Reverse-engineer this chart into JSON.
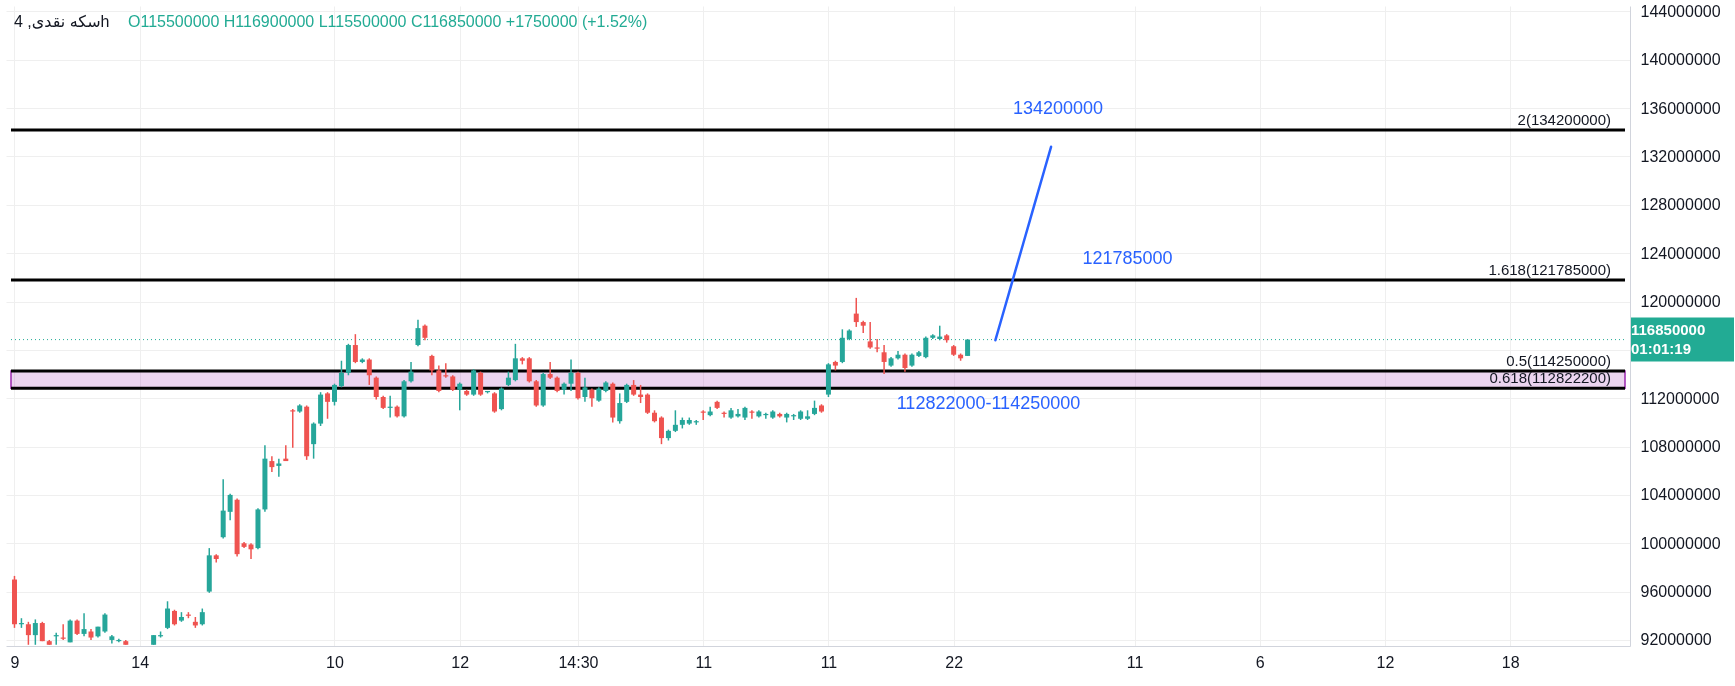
{
  "chart_data": {
    "type": "candlestick",
    "title": "سکه نقدی, 4h",
    "subtitle": "O115500000  H116900000  L115500000  C116850000  +1750000 (+1.52%)",
    "categories": [
      "9",
      null,
      null,
      null,
      null,
      null,
      null,
      null,
      null,
      null,
      null,
      null,
      null,
      null,
      null,
      null,
      null,
      null,
      "14",
      null,
      null,
      null,
      null,
      null,
      null,
      null,
      null,
      null,
      null,
      null,
      null,
      null,
      null,
      null,
      null,
      null,
      null,
      null,
      null,
      null,
      null,
      null,
      null,
      null,
      null,
      null,
      "10",
      null,
      null,
      null,
      null,
      null,
      null,
      null,
      null,
      null,
      null,
      null,
      null,
      null,
      null,
      null,
      null,
      null,
      "12",
      null,
      null,
      null,
      null,
      null,
      null,
      null,
      null,
      null,
      null,
      null,
      null,
      null,
      null,
      null,
      null,
      "14:30",
      null,
      null,
      null,
      null,
      null,
      null,
      null,
      null,
      null,
      null,
      null,
      null,
      null,
      null,
      null,
      null,
      null,
      "11",
      null,
      null,
      null,
      null,
      null,
      null,
      null,
      null,
      null,
      null,
      null,
      null,
      null,
      null,
      null,
      null,
      null,
      "11",
      null,
      null,
      null,
      null,
      null,
      null,
      null,
      null,
      null,
      null,
      null,
      null,
      null,
      null,
      null,
      null,
      null,
      "22",
      null,
      null,
      null,
      null,
      null,
      null,
      null,
      null,
      null,
      null,
      null,
      null,
      null,
      null,
      null,
      null,
      null,
      null,
      null,
      null,
      null,
      null,
      null,
      null,
      null,
      "11",
      null,
      null,
      null,
      null,
      null,
      null,
      null,
      null,
      null,
      null,
      null,
      null,
      null,
      null,
      null,
      null,
      null,
      "6",
      null,
      null,
      null,
      null,
      null,
      null,
      null,
      null,
      null,
      null,
      null,
      null,
      null,
      null,
      null,
      null,
      null,
      "12",
      null,
      null,
      null,
      null,
      null,
      null,
      null,
      null,
      null,
      null,
      null,
      null,
      null,
      null,
      null,
      null,
      null,
      "18",
      null,
      null,
      null,
      null,
      null,
      null,
      null,
      null,
      null,
      null,
      null,
      null,
      null,
      null,
      null,
      null
    ],
    "ohlc": [
      [
        97000000,
        97300000,
        93000000,
        93300000
      ],
      [
        93300000,
        93800000,
        93000000,
        93400000
      ],
      [
        93300000,
        93500000,
        91600000,
        92400000
      ],
      [
        92400000,
        93700000,
        91600000,
        93400000
      ],
      [
        93400000,
        93500000,
        91900000,
        91900000
      ],
      [
        91900000,
        92000000,
        91600000,
        91600000
      ],
      [
        92300000,
        92600000,
        91600000,
        92400000
      ],
      [
        92200000,
        93300000,
        92000000,
        92100000
      ],
      [
        91800000,
        93700000,
        91800000,
        93600000
      ],
      [
        93600000,
        93700000,
        92400000,
        92500000
      ],
      [
        92500000,
        94200000,
        92300000,
        92900000
      ],
      [
        92700000,
        92900000,
        92000000,
        92200000
      ],
      [
        92300000,
        93100000,
        92200000,
        93100000
      ],
      [
        92700000,
        94200000,
        92600000,
        94100000
      ],
      [
        92000000,
        92400000,
        91700000,
        92300000
      ],
      [
        91900000,
        92100000,
        91800000,
        92000000
      ],
      [
        91900000,
        92000000,
        91600000,
        91600000
      ],
      null,
      null,
      null,
      [
        91600000,
        92400000,
        91600000,
        92400000
      ],
      [
        92300000,
        92700000,
        92200000,
        92400000
      ],
      [
        93000000,
        95200000,
        92900000,
        94600000
      ],
      [
        94400000,
        94500000,
        93200000,
        93300000
      ],
      [
        93600000,
        94300000,
        93500000,
        93900000
      ],
      [
        94100000,
        94300000,
        93800000,
        94000000
      ],
      [
        93500000,
        93900000,
        93000000,
        93200000
      ],
      [
        93300000,
        94600000,
        93200000,
        94300000
      ],
      [
        96000000,
        99600000,
        95900000,
        99000000
      ],
      [
        99000000,
        99100000,
        98400000,
        98700000
      ],
      [
        100500000,
        105300000,
        100400000,
        102700000
      ],
      [
        102600000,
        104100000,
        101900000,
        104000000
      ],
      [
        103600000,
        103700000,
        98900000,
        99100000
      ],
      [
        100000000,
        100100000,
        99600000,
        99700000
      ],
      [
        99900000,
        100000000,
        98700000,
        99500000
      ],
      [
        99600000,
        102900000,
        99500000,
        102800000
      ],
      [
        102800000,
        108100000,
        102600000,
        107000000
      ],
      [
        106800000,
        107200000,
        105900000,
        106300000
      ],
      [
        106400000,
        107000000,
        105500000,
        106600000
      ],
      [
        107000000,
        108100000,
        106800000,
        106800000
      ],
      [
        111000000,
        111100000,
        107900000,
        110900000
      ],
      [
        110900000,
        111500000,
        110800000,
        111400000
      ],
      [
        111300000,
        111400000,
        106900000,
        107200000
      ],
      [
        108200000,
        110000000,
        107000000,
        109900000
      ],
      [
        109900000,
        112500000,
        109700000,
        112300000
      ],
      [
        112400000,
        112500000,
        110300000,
        111700000
      ],
      [
        111700000,
        113200000,
        111400000,
        113100000
      ],
      [
        113000000,
        115100000,
        112900000,
        114100000
      ],
      [
        114100000,
        116500000,
        113900000,
        116400000
      ],
      [
        116400000,
        117300000,
        114900000,
        115000000
      ],
      [
        115000000,
        115300000,
        114900000,
        115200000
      ],
      [
        115200000,
        115300000,
        113100000,
        113900000
      ],
      [
        113700000,
        113800000,
        111900000,
        112100000
      ],
      [
        112100000,
        112200000,
        111100000,
        111200000
      ],
      [
        111200000,
        112200000,
        110400000,
        111300000
      ],
      [
        111300000,
        111400000,
        110400000,
        110500000
      ],
      [
        110500000,
        113500000,
        110400000,
        113400000
      ],
      [
        113400000,
        115000000,
        113300000,
        114200000
      ],
      [
        116400000,
        118500000,
        116300000,
        117800000
      ],
      [
        118000000,
        118100000,
        116800000,
        117000000
      ],
      [
        115500000,
        115600000,
        113900000,
        114300000
      ],
      [
        114300000,
        114700000,
        112500000,
        112600000
      ],
      [
        113900000,
        114900000,
        113700000,
        113800000
      ],
      [
        113800000,
        113900000,
        112600000,
        112700000
      ],
      [
        112700000,
        113300000,
        111000000,
        113200000
      ],
      [
        112600000,
        112700000,
        112200000,
        112300000
      ],
      [
        112300000,
        114400000,
        112200000,
        114300000
      ],
      [
        114100000,
        114200000,
        112200000,
        112300000
      ],
      [
        112500000,
        112600000,
        112400000,
        112600000
      ],
      [
        112400000,
        112500000,
        110800000,
        110900000
      ],
      [
        111100000,
        112900000,
        111000000,
        112800000
      ],
      [
        113100000,
        114200000,
        113000000,
        113700000
      ],
      [
        113500000,
        116500000,
        113400000,
        115300000
      ],
      [
        115300000,
        115400000,
        114800000,
        115100000
      ],
      [
        115300000,
        115400000,
        113300000,
        113400000
      ],
      [
        113400000,
        113500000,
        111300000,
        111400000
      ],
      [
        111400000,
        114100000,
        111300000,
        114000000
      ],
      [
        114000000,
        115000000,
        113600000,
        113700000
      ],
      [
        113700000,
        113800000,
        112500000,
        112600000
      ],
      [
        112700000,
        113300000,
        112300000,
        113200000
      ],
      [
        113200000,
        115200000,
        112600000,
        114100000
      ],
      [
        114100000,
        114200000,
        111900000,
        112000000
      ],
      [
        112100000,
        113700000,
        111700000,
        112900000
      ],
      [
        112700000,
        112800000,
        111300000,
        112000000
      ],
      [
        111800000,
        112900000,
        111700000,
        112800000
      ],
      [
        112600000,
        113400000,
        112500000,
        113300000
      ],
      [
        113200000,
        113300000,
        110000000,
        110400000
      ],
      [
        110100000,
        112400000,
        109900000,
        111600000
      ],
      [
        111700000,
        113200000,
        111600000,
        113100000
      ],
      [
        113100000,
        113500000,
        112200000,
        112300000
      ],
      [
        112300000,
        113100000,
        111600000,
        112100000
      ],
      [
        112300000,
        112400000,
        110700000,
        110800000
      ],
      [
        110800000,
        111000000,
        110000000,
        110100000
      ],
      [
        110400000,
        110500000,
        108200000,
        108700000
      ],
      [
        108700000,
        109400000,
        108500000,
        109300000
      ],
      [
        109300000,
        111000000,
        109200000,
        109800000
      ],
      [
        109800000,
        110400000,
        109500000,
        110200000
      ],
      [
        109900000,
        110400000,
        109800000,
        110200000
      ],
      [
        110000000,
        110200000,
        109800000,
        110100000
      ],
      [
        110900000,
        111000000,
        110200000,
        110800000
      ],
      [
        110600000,
        111300000,
        110500000,
        110900000
      ],
      [
        111700000,
        111800000,
        111100000,
        111200000
      ],
      [
        110800000,
        110900000,
        110400000,
        110700000
      ],
      [
        110400000,
        111200000,
        110300000,
        111000000
      ],
      [
        110500000,
        111100000,
        110400000,
        110700000
      ],
      [
        110400000,
        111300000,
        110200000,
        111200000
      ],
      [
        110900000,
        111000000,
        110300000,
        110800000
      ],
      [
        110500000,
        111000000,
        110400000,
        110900000
      ],
      [
        110600000,
        110800000,
        110300000,
        110700000
      ],
      [
        110400000,
        111000000,
        110300000,
        110900000
      ],
      [
        110700000,
        110800000,
        110400000,
        110500000
      ],
      [
        110400000,
        110800000,
        110000000,
        110700000
      ],
      [
        110500000,
        110700000,
        110200000,
        110600000
      ],
      [
        110300000,
        111000000,
        110200000,
        110900000
      ],
      [
        110300000,
        111000000,
        110200000,
        110500000
      ],
      [
        110700000,
        111800000,
        110600000,
        111200000
      ],
      [
        111400000,
        111500000,
        110800000,
        110900000
      ],
      [
        112300000,
        114900000,
        112100000,
        114800000
      ],
      [
        115000000,
        115100000,
        114300000,
        114700000
      ],
      [
        115000000,
        117700000,
        114900000,
        117000000
      ],
      [
        116900000,
        117700000,
        116800000,
        117600000
      ],
      [
        119000000,
        120300000,
        117900000,
        118300000
      ],
      [
        118300000,
        118400000,
        117400000,
        118000000
      ],
      [
        116700000,
        118300000,
        116100000,
        116200000
      ],
      [
        116200000,
        116900000,
        115800000,
        116100000
      ],
      [
        115800000,
        116400000,
        114000000,
        115000000
      ],
      [
        114700000,
        115400000,
        114600000,
        115300000
      ],
      [
        115300000,
        115900000,
        115200000,
        115600000
      ],
      [
        115600000,
        115700000,
        114200000,
        114500000
      ],
      [
        114700000,
        115700000,
        114600000,
        115600000
      ],
      [
        115500000,
        115900000,
        115400000,
        115800000
      ],
      [
        115400000,
        117100000,
        115300000,
        117000000
      ],
      [
        117000000,
        117300000,
        116900000,
        117200000
      ],
      [
        116900000,
        118000000,
        116800000,
        117100000
      ],
      [
        117200000,
        117300000,
        116600000,
        116800000
      ],
      [
        116300000,
        116400000,
        115500000,
        115600000
      ],
      [
        115600000,
        115700000,
        115100000,
        115300000
      ],
      [
        115500000,
        116900000,
        115500000,
        116850000
      ],
      null,
      null,
      null,
      null,
      null,
      null,
      null,
      null,
      null,
      null,
      null,
      null,
      null,
      null,
      null,
      null,
      null,
      null,
      null,
      null,
      null,
      null,
      null,
      null,
      null,
      null,
      null,
      null,
      null,
      null,
      null,
      null,
      null,
      null,
      null,
      null,
      null,
      null,
      null,
      null,
      null,
      null,
      null,
      null,
      null,
      null,
      null,
      null,
      null,
      null,
      null,
      null,
      null,
      null,
      null,
      null,
      null,
      null,
      null,
      null,
      null,
      null,
      null,
      null,
      null,
      null,
      null,
      null,
      null,
      null,
      null,
      null,
      null,
      null,
      null,
      null,
      null,
      null,
      null,
      null,
      null,
      null,
      null,
      null,
      null,
      null,
      null,
      null,
      null,
      null,
      null,
      null,
      null,
      null
    ],
    "colors": [
      "#ef5350",
      "#26a69a",
      "#ef5350",
      "#26a69a",
      "#ef5350",
      "#ef5350",
      "#26a69a",
      "#ef5350",
      "#26a69a",
      "#ef5350",
      "#26a69a",
      "#ef5350",
      "#26a69a",
      "#26a69a",
      "#26a69a",
      "#26a69a",
      "#ef5350",
      null,
      null,
      null,
      "#26a69a",
      "#26a69a",
      "#26a69a",
      "#ef5350",
      "#26a69a",
      "#ef5350",
      "#ef5350",
      "#26a69a",
      "#26a69a",
      "#ef5350",
      "#26a69a",
      "#26a69a",
      "#ef5350",
      "#ef5350",
      "#ef5350",
      "#26a69a",
      "#26a69a",
      "#ef5350",
      "#26a69a",
      "#ef5350",
      "#ef5350",
      "#26a69a",
      "#ef5350",
      "#26a69a",
      "#26a69a",
      "#ef5350",
      "#26a69a",
      "#26a69a",
      "#26a69a",
      "#ef5350",
      "#26a69a",
      "#ef5350",
      "#ef5350",
      "#ef5350",
      "#26a69a",
      "#ef5350",
      "#26a69a",
      "#26a69a",
      "#26a69a",
      "#ef5350",
      "#ef5350",
      "#ef5350",
      "#ef5350",
      "#ef5350",
      "#26a69a",
      "#ef5350",
      "#26a69a",
      "#ef5350",
      "#26a69a",
      "#ef5350",
      "#26a69a",
      "#26a69a",
      "#26a69a",
      "#ef5350",
      "#ef5350",
      "#ef5350",
      "#26a69a",
      "#ef5350",
      "#ef5350",
      "#26a69a",
      "#26a69a",
      "#ef5350",
      "#26a69a",
      "#ef5350",
      "#26a69a",
      "#26a69a",
      "#ef5350",
      "#26a69a",
      "#26a69a",
      "#ef5350",
      "#ef5350",
      "#ef5350",
      "#ef5350",
      "#ef5350",
      "#26a69a",
      "#26a69a",
      "#26a69a",
      "#26a69a",
      "#26a69a",
      "#ef5350",
      "#26a69a",
      "#ef5350",
      "#ef5350",
      "#26a69a",
      "#26a69a",
      "#26a69a",
      "#ef5350",
      "#26a69a",
      "#26a69a",
      "#26a69a",
      "#ef5350",
      "#26a69a",
      "#26a69a",
      "#26a69a",
      "#26a69a",
      "#26a69a",
      "#ef5350",
      "#26a69a",
      "#ef5350",
      "#26a69a",
      "#26a69a",
      "#ef5350",
      "#ef5350",
      "#ef5350",
      "#ef5350",
      "#ef5350",
      "#26a69a",
      "#26a69a",
      "#ef5350",
      "#26a69a",
      "#26a69a",
      "#26a69a",
      "#26a69a",
      "#26a69a",
      "#ef5350",
      "#ef5350",
      "#ef5350",
      "#26a69a",
      null,
      null,
      null,
      null,
      null,
      null,
      null,
      null,
      null,
      null,
      null,
      null,
      null,
      null,
      null,
      null,
      null,
      null,
      null,
      null,
      null,
      null,
      null,
      null,
      null,
      null,
      null,
      null,
      null,
      null,
      null,
      null,
      null,
      null,
      null,
      null,
      null,
      null,
      null,
      null,
      null,
      null,
      null,
      null,
      null,
      null,
      null,
      null,
      null,
      null,
      null,
      null,
      null,
      null,
      null,
      null,
      null,
      null,
      null,
      null,
      null,
      null,
      null,
      null,
      null,
      null,
      null,
      null,
      null,
      null,
      null,
      null,
      null,
      null,
      null,
      null,
      null,
      null,
      null,
      null,
      null,
      null,
      null,
      null,
      null,
      null,
      null,
      null,
      null,
      null,
      null,
      null,
      null,
      null
    ],
    "series": [
      {
        "type": "line",
        "color": "#2962ff",
        "values": [
          null,
          null,
          null,
          null,
          null,
          null,
          null,
          null,
          null,
          null,
          null,
          null,
          null,
          null,
          null,
          null,
          null,
          null,
          null,
          null,
          null,
          null,
          null,
          null,
          null,
          null,
          null,
          null,
          null,
          null,
          null,
          null,
          null,
          null,
          null,
          null,
          null,
          null,
          null,
          null,
          null,
          null,
          null,
          null,
          null,
          null,
          null,
          null,
          null,
          null,
          null,
          null,
          null,
          null,
          null,
          null,
          null,
          null,
          null,
          null,
          null,
          null,
          null,
          null,
          null,
          null,
          null,
          null,
          null,
          null,
          null,
          null,
          null,
          null,
          null,
          null,
          null,
          null,
          null,
          null,
          null,
          null,
          null,
          null,
          null,
          null,
          null,
          null,
          null,
          null,
          null,
          null,
          null,
          null,
          null,
          null,
          null,
          null,
          null,
          null,
          null,
          null,
          null,
          null,
          null,
          null,
          null,
          null,
          null,
          null,
          null,
          null,
          null,
          null,
          null,
          null,
          null,
          null,
          null,
          null,
          null,
          null,
          null,
          null,
          null,
          null,
          null,
          null,
          null,
          null,
          null,
          null,
          null,
          null,
          null,
          null,
          null,
          null,
          null,
          null,
          null,
          116800000,
          118800000,
          120800000,
          122800000,
          124800000,
          126800000,
          128800000,
          130800000,
          132800000,
          null,
          null,
          null,
          null,
          null,
          null,
          null,
          null,
          null,
          null,
          null,
          null,
          null,
          null,
          null,
          null,
          null,
          null,
          null,
          null,
          null,
          null,
          null,
          null,
          null,
          null,
          null,
          null,
          null,
          null,
          null,
          null,
          null,
          null,
          null,
          null,
          null,
          null,
          null,
          null,
          null,
          null,
          null,
          null,
          null,
          null,
          null,
          null,
          null,
          null,
          null,
          null,
          null,
          null,
          null,
          null,
          null,
          null,
          null,
          null,
          null,
          null,
          null,
          null,
          null,
          null,
          null,
          null,
          null,
          null,
          null,
          null,
          null,
          null,
          null,
          null,
          null,
          null,
          null,
          null,
          null,
          null
        ]
      }
    ],
    "ylim": [
      91500000,
      144450000
    ],
    "yticks": [
      92000000,
      96000000,
      100000000,
      104000000,
      108000000,
      112000000,
      {
        "value": 116000000,
        "label": null
      },
      120000000,
      124000000,
      128000000,
      132000000,
      136000000,
      140000000,
      144000000
    ],
    "grid": true,
    "ref_lines": [
      {
        "axis": "y",
        "value": 134200000,
        "label": "2(134200000)",
        "color": "#000000"
      },
      {
        "axis": "y",
        "value": 121785000,
        "label": "1.618(121785000)",
        "color": "#000000"
      },
      {
        "axis": "y",
        "value": 114250000,
        "label": "0.5(114250000)",
        "color": "#000000"
      },
      {
        "axis": "y",
        "value": 112822200,
        "label": "0.618(112822200)",
        "color": "#000000"
      },
      {
        "axis": "y",
        "value": 116850000,
        "label": "116850000\n01:01:19",
        "color": "#22ab94",
        "line_style": "dotted"
      }
    ],
    "bands": [
      {
        "axis": "y",
        "from": 112822000,
        "to": 114250000,
        "label": "112822000-114250000",
        "color": "#9c27b0"
      }
    ],
    "annotations": [
      {
        "text": "134200000",
        "y": 134200000
      },
      {
        "text": "121785000",
        "y": 121785000
      }
    ]
  }
}
